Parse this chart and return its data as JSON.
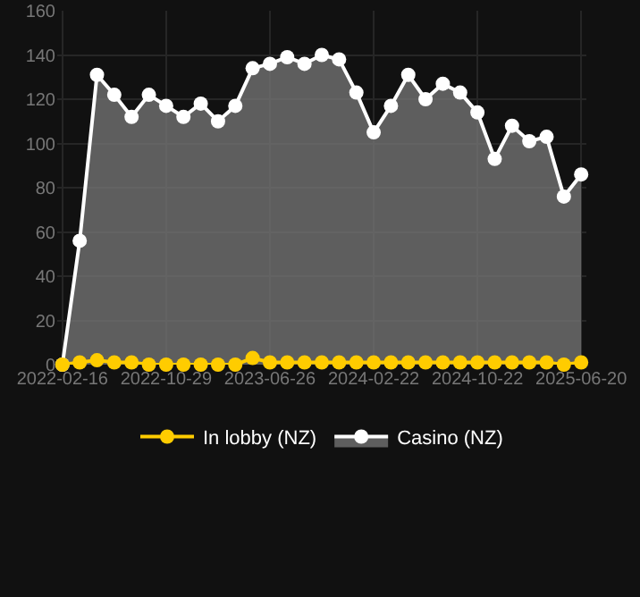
{
  "chart_data": {
    "type": "area",
    "categories": [
      "2022-02-16",
      null,
      null,
      null,
      null,
      null,
      "2022-10-29",
      null,
      null,
      null,
      null,
      null,
      "2023-06-26",
      null,
      null,
      null,
      null,
      null,
      "2024-02-22",
      null,
      null,
      null,
      null,
      null,
      "2024-10-22",
      null,
      null,
      null,
      null,
      null,
      "2025-06-20"
    ],
    "series": [
      {
        "name": "In lobby (NZ)",
        "type": "line",
        "color": "#ffcc00",
        "values": [
          0,
          1,
          2,
          1,
          1,
          0,
          0,
          0,
          0,
          0,
          0,
          3,
          1,
          1,
          1,
          1,
          1,
          1,
          1,
          1,
          1,
          1,
          1,
          1,
          1,
          1,
          1,
          1,
          1,
          0,
          1
        ]
      },
      {
        "name": "Casino (NZ)",
        "color": "#ffffff",
        "values": [
          0,
          56,
          131,
          122,
          112,
          122,
          117,
          112,
          118,
          110,
          117,
          134,
          136,
          139,
          136,
          140,
          138,
          123,
          105,
          117,
          131,
          120,
          127,
          123,
          114,
          93,
          108,
          101,
          103,
          76,
          86
        ]
      }
    ],
    "ylim": [
      0,
      160
    ],
    "yticks": [
      0,
      20,
      40,
      60,
      80,
      100,
      120,
      140,
      160
    ],
    "grid": true,
    "legend": "bottom",
    "marker": "circle",
    "line_style": "solid"
  }
}
